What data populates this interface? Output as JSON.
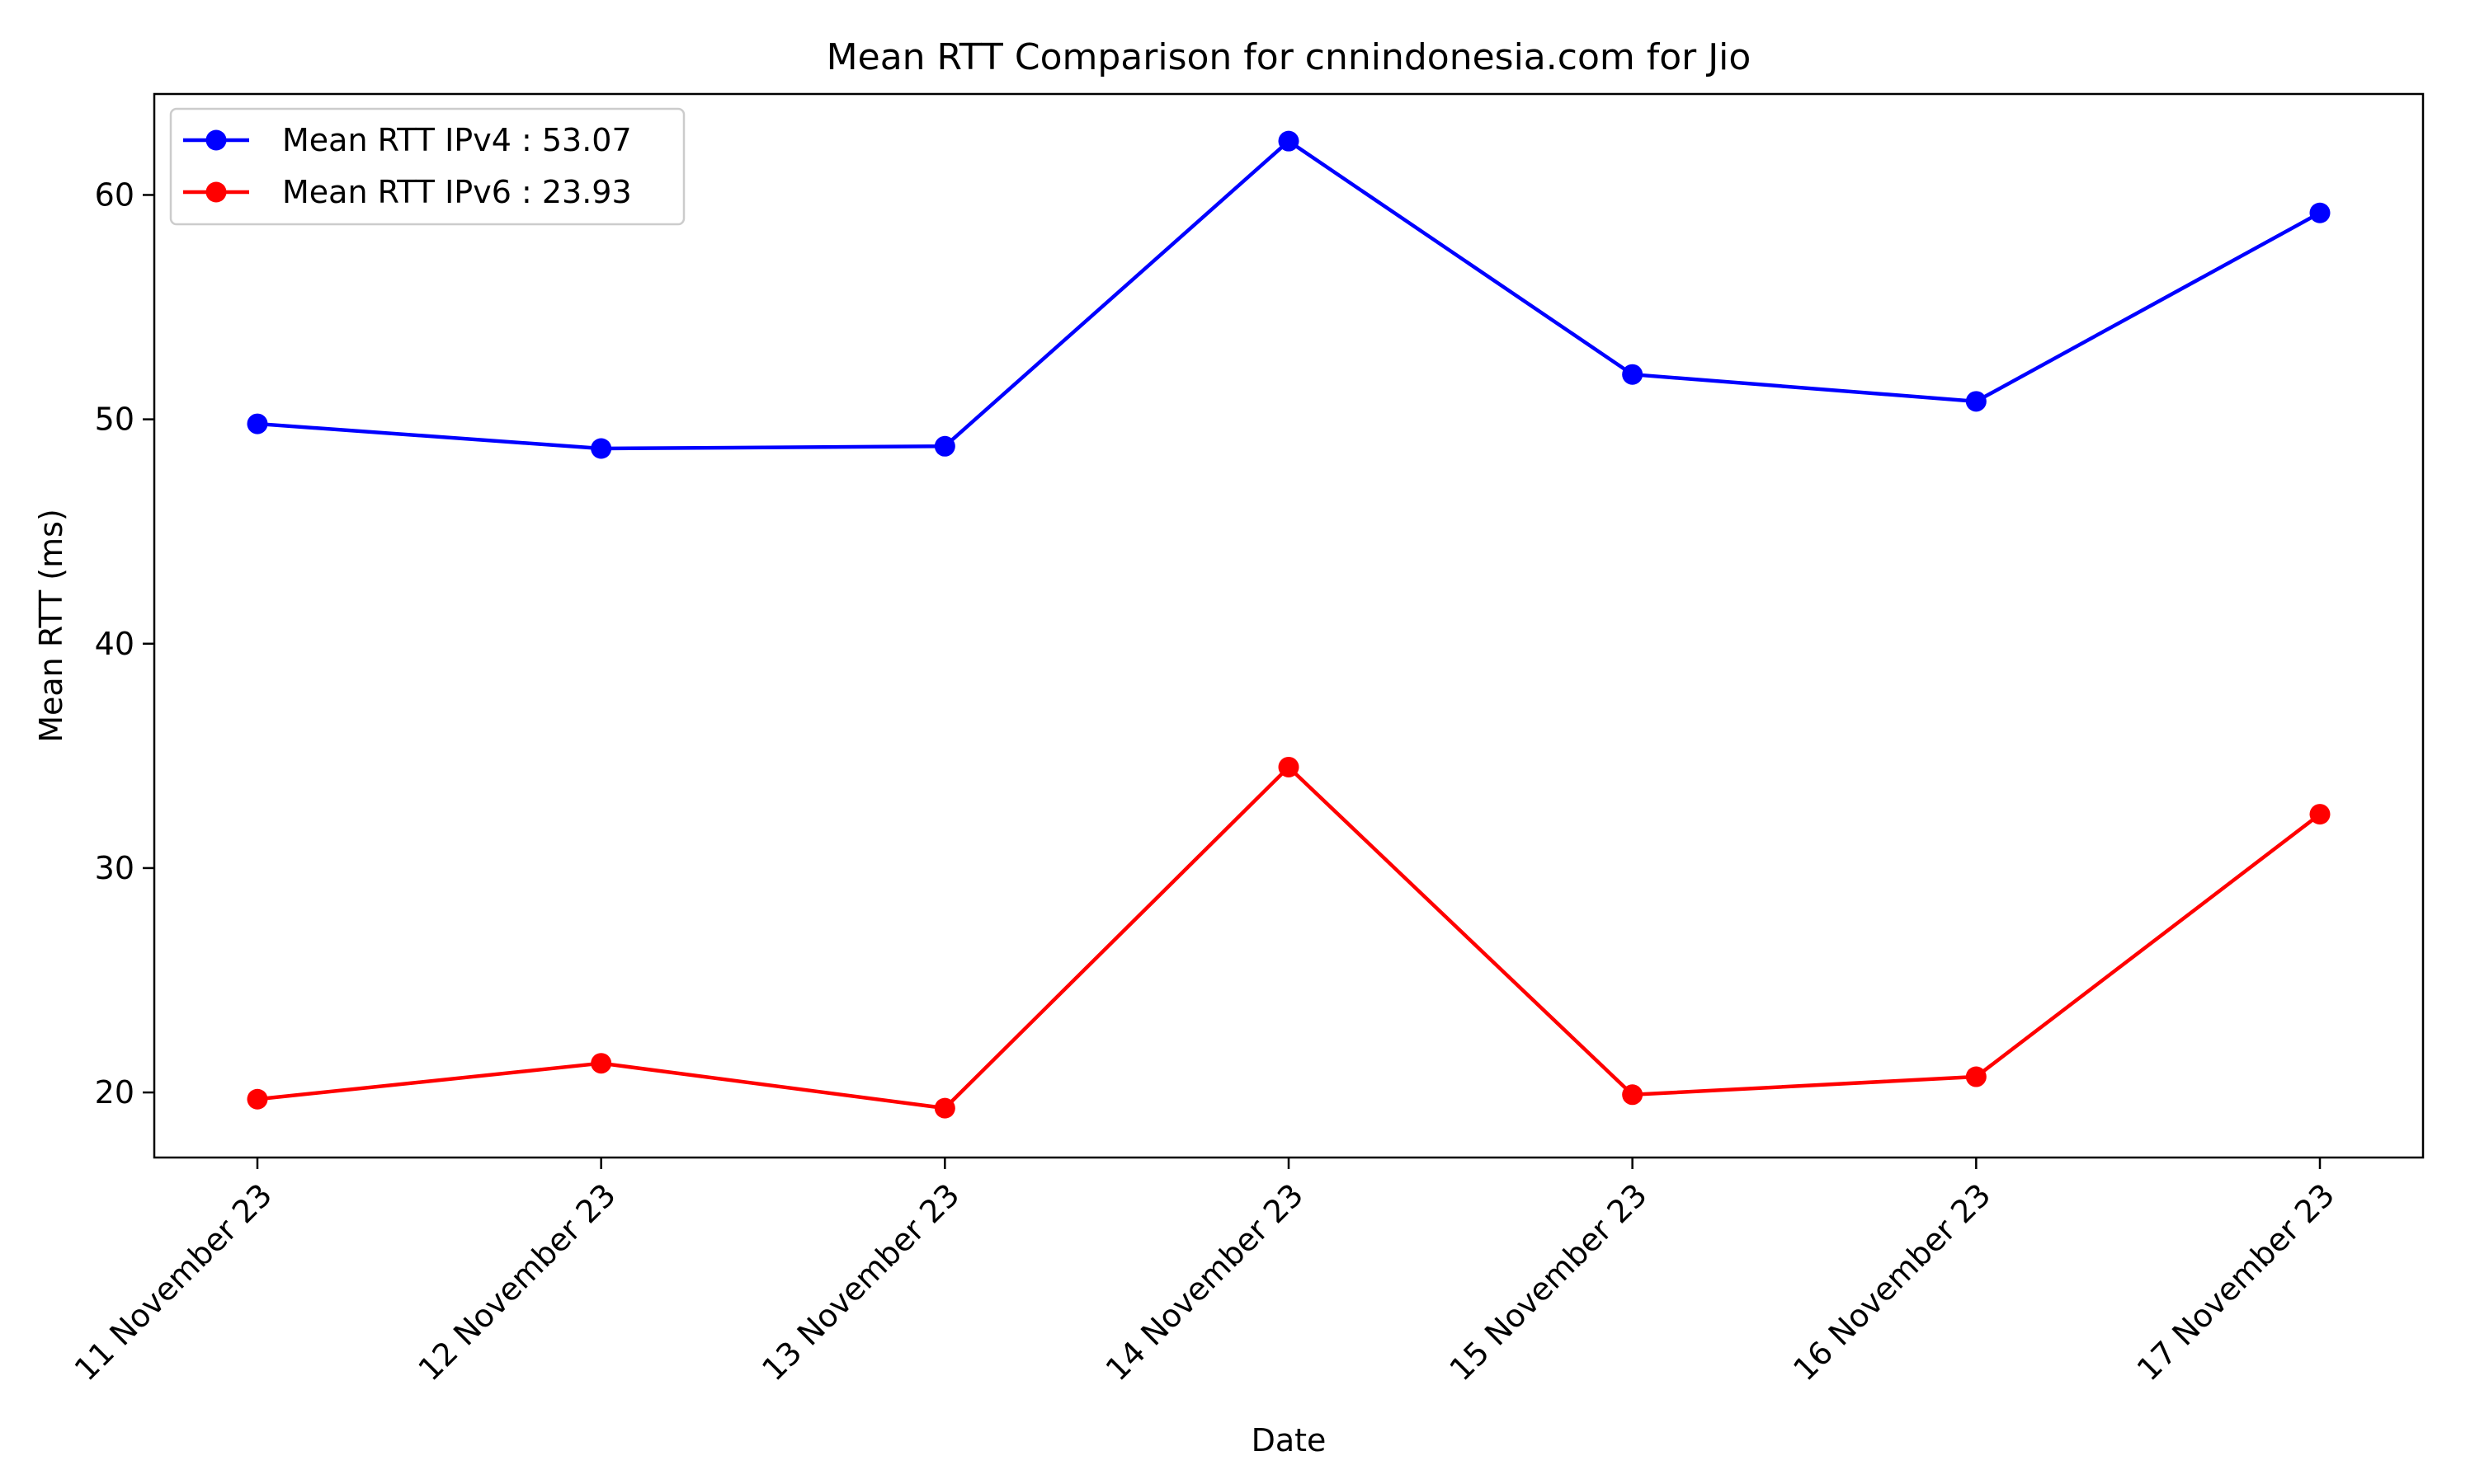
{
  "chart_data": {
    "type": "line",
    "title": "Mean RTT Comparison for cnnindonesia.com for Jio",
    "xlabel": "Date",
    "ylabel": "Mean RTT (ms)",
    "categories": [
      "11 November 23",
      "12 November 23",
      "13 November 23",
      "14 November 23",
      "15 November 23",
      "16 November 23",
      "17 November 23"
    ],
    "series": [
      {
        "name": "Mean RTT IPv4 : 53.07",
        "color": "#0000ff",
        "values": [
          49.8,
          48.7,
          48.8,
          62.4,
          52.0,
          50.8,
          59.2
        ]
      },
      {
        "name": "Mean RTT IPv6 : 23.93",
        "color": "#ff0000",
        "values": [
          19.7,
          21.3,
          19.3,
          34.5,
          19.9,
          20.7,
          32.4
        ]
      }
    ],
    "ylim": [
      17.1,
      64.5
    ],
    "yticks": [
      20,
      30,
      40,
      50,
      60
    ],
    "legend_position": "top-left",
    "grid": false,
    "markers": "circle"
  }
}
